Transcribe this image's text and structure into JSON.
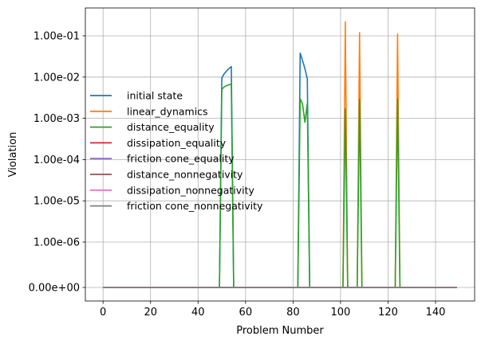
{
  "chart_data": {
    "type": "line",
    "title": "",
    "xlabel": "Problem Number",
    "ylabel": "Violation",
    "xlim": [
      -7.45,
      156.45
    ],
    "xticks": [
      0,
      20,
      40,
      60,
      80,
      100,
      120,
      140
    ],
    "xtick_labels": [
      "0",
      "20",
      "40",
      "60",
      "80",
      "100",
      "120",
      "140"
    ],
    "yscale": "symlog",
    "yticks": [
      0,
      1e-06,
      1e-05,
      0.0001,
      0.001,
      0.01,
      0.1
    ],
    "ytick_labels": [
      "0.00e+00",
      "1.00e-06",
      "1.00e-05",
      "1.00e-04",
      "1.00e-03",
      "1.00e-02",
      "1.00e-01"
    ],
    "grid": true,
    "legend_position": "center-left",
    "series": [
      {
        "name": "initial state",
        "color": "#1f77b4",
        "points": [
          [
            0,
            0
          ],
          [
            49,
            0
          ],
          [
            50,
            0.0095
          ],
          [
            51,
            0.012
          ],
          [
            52,
            0.014
          ],
          [
            53,
            0.016
          ],
          [
            54,
            0.018
          ],
          [
            55,
            0
          ],
          [
            82,
            0
          ],
          [
            83,
            0.038
          ],
          [
            84,
            0.025
          ],
          [
            85,
            0.016
          ],
          [
            86,
            0.009
          ],
          [
            87,
            0
          ],
          [
            149,
            0
          ]
        ]
      },
      {
        "name": "linear_dynamics",
        "color": "#ff7f0e",
        "points": [
          [
            0,
            0
          ],
          [
            101,
            0
          ],
          [
            102,
            0.22
          ],
          [
            103,
            0
          ],
          [
            107,
            0
          ],
          [
            108,
            0.12
          ],
          [
            109,
            0
          ],
          [
            123,
            0
          ],
          [
            124,
            0.11
          ],
          [
            125,
            0
          ],
          [
            149,
            0
          ]
        ]
      },
      {
        "name": "distance_equality",
        "color": "#2ca02c",
        "points": [
          [
            0,
            0
          ],
          [
            49,
            0
          ],
          [
            50,
            0.005
          ],
          [
            51,
            0.0058
          ],
          [
            52,
            0.0062
          ],
          [
            53,
            0.0065
          ],
          [
            54,
            0.0068
          ],
          [
            55,
            0
          ],
          [
            82,
            0
          ],
          [
            83,
            0.003
          ],
          [
            84,
            0.0022
          ],
          [
            85,
            0.0008
          ],
          [
            86,
            0.0023
          ],
          [
            87,
            0
          ],
          [
            101,
            0
          ],
          [
            102,
            0.0017
          ],
          [
            103,
            0
          ],
          [
            107,
            0
          ],
          [
            108,
            0.0029
          ],
          [
            109,
            0
          ],
          [
            123,
            0
          ],
          [
            124,
            0.0029
          ],
          [
            125,
            0
          ],
          [
            149,
            0
          ]
        ]
      },
      {
        "name": "dissipation_equality",
        "color": "#d62728",
        "points": [
          [
            0,
            0
          ],
          [
            149,
            0
          ]
        ]
      },
      {
        "name": "friction cone_equality",
        "color": "#9467bd",
        "points": [
          [
            0,
            0
          ],
          [
            149,
            0
          ]
        ]
      },
      {
        "name": "distance_nonnegativity",
        "color": "#8c564b",
        "points": [
          [
            0,
            0
          ],
          [
            149,
            0
          ]
        ]
      },
      {
        "name": "dissipation_nonnegativity",
        "color": "#e377c2",
        "points": [
          [
            0,
            0
          ],
          [
            149,
            0
          ]
        ]
      },
      {
        "name": "friction cone_nonnegativity",
        "color": "#7f7f7f",
        "points": [
          [
            0,
            0
          ],
          [
            149,
            0
          ]
        ]
      }
    ]
  }
}
